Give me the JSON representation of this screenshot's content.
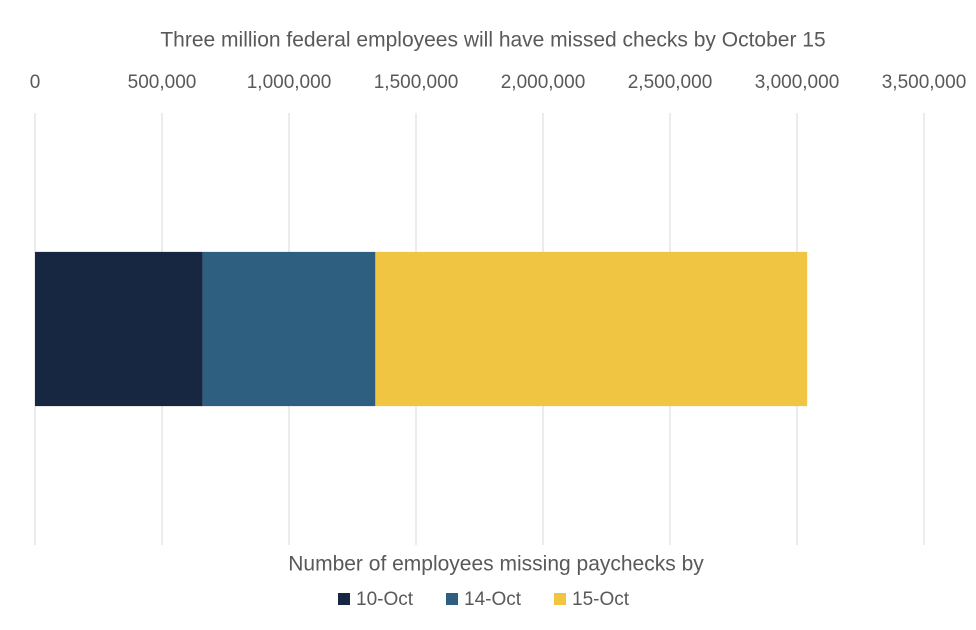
{
  "chart_data": {
    "type": "stacked-bar-horizontal",
    "title": "Three million federal employees will have missed checks by October 15",
    "xlabel": "Number of employees missing paychecks by",
    "categories": [
      null
    ],
    "series": [
      {
        "name": "10-Oct",
        "color": "#172641",
        "values": [
          660000
        ]
      },
      {
        "name": "14-Oct",
        "color": "#2e5f80",
        "values": [
          680000
        ]
      },
      {
        "name": "15-Oct",
        "color": "#f0c541",
        "values": [
          1700000
        ]
      }
    ],
    "xlim": [
      0,
      3500000
    ],
    "xticks": [
      0,
      {
        "value": 500000,
        "label": "500,000"
      },
      {
        "value": 1000000,
        "label": "1,000,000"
      },
      {
        "value": 1500000,
        "label": "1,500,000"
      },
      {
        "value": 2000000,
        "label": "2,000,000"
      },
      {
        "value": 2500000,
        "label": "2,500,000"
      },
      {
        "value": 3000000,
        "label": "3,000,000"
      },
      {
        "value": 3500000,
        "label": "3,500,000"
      }
    ],
    "grid": true,
    "legend": "bottom"
  }
}
